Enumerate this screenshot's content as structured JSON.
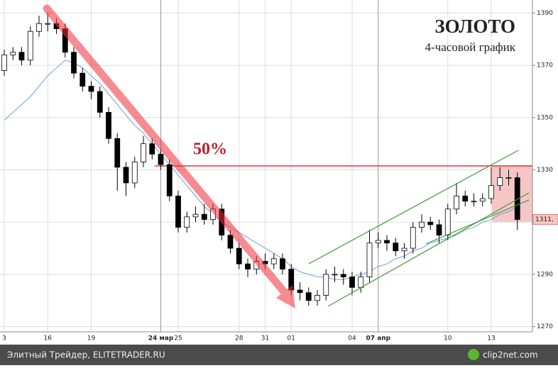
{
  "chart_data": {
    "type": "candlestick",
    "title": "ЗОЛОТО",
    "subtitle": "4-часовой график",
    "categories": [
      "3",
      null,
      null,
      null,
      null,
      "16",
      null,
      null,
      null,
      null,
      "19",
      null,
      null,
      null,
      null,
      null,
      null,
      null,
      "24 мар",
      null,
      "25",
      null,
      null,
      null,
      null,
      null,
      null,
      "28",
      null,
      null,
      "31",
      null,
      null,
      "01",
      null,
      null,
      null,
      null,
      null,
      null,
      "04",
      null,
      null,
      "07 апр",
      null,
      null,
      null,
      null,
      null,
      null,
      null,
      "10",
      null,
      null,
      null,
      null,
      "13",
      null,
      null,
      null
    ],
    "major_ticks": [
      18,
      43
    ],
    "open": [
      1368,
      1374,
      1375,
      1372,
      1383,
      1386,
      1386,
      1384,
      1375,
      1367,
      1362,
      1360,
      1352,
      1342,
      1331,
      1325,
      1333,
      1340,
      1336,
      1332,
      1320,
      1308,
      1312,
      1313,
      1311,
      1315,
      1305,
      1300,
      1294,
      1292,
      1295,
      1294,
      1296,
      1292,
      1284,
      1283,
      1280,
      1282,
      1290,
      1290,
      1289,
      1285,
      1289,
      1302,
      1303,
      1302,
      1299,
      1300,
      1308,
      1310,
      1309,
      1305,
      1315,
      1320,
      1318,
      1318,
      1319,
      1324,
      1327,
      1327
    ],
    "high": [
      1376,
      1377,
      1377,
      1385,
      1389,
      1390,
      1388,
      1386,
      1377,
      1369,
      1364,
      1362,
      1354,
      1344,
      1333,
      1335,
      1343,
      1342,
      1338,
      1334,
      1322,
      1314,
      1316,
      1317,
      1317,
      1317,
      1307,
      1302,
      1296,
      1297,
      1298,
      1298,
      1298,
      1294,
      1287,
      1285,
      1284,
      1292,
      1293,
      1292,
      1291,
      1291,
      1307,
      1306,
      1305,
      1304,
      1302,
      1310,
      1313,
      1312,
      1311,
      1317,
      1325,
      1322,
      1321,
      1321,
      1331,
      1331,
      1330,
      1329
    ],
    "low": [
      1366,
      1372,
      1370,
      1370,
      1381,
      1383,
      1382,
      1373,
      1365,
      1360,
      1357,
      1350,
      1340,
      1322,
      1320,
      1323,
      1331,
      1334,
      1330,
      1318,
      1306,
      1306,
      1310,
      1309,
      1309,
      1303,
      1298,
      1292,
      1289,
      1290,
      1292,
      1292,
      1290,
      1282,
      1280,
      1278,
      1278,
      1280,
      1287,
      1286,
      1282,
      1283,
      1287,
      1300,
      1299,
      1297,
      1296,
      1298,
      1306,
      1307,
      1302,
      1303,
      1313,
      1316,
      1316,
      1316,
      1317,
      1322,
      1324,
      1307
    ],
    "close": [
      1374,
      1375,
      1372,
      1383,
      1386,
      1386,
      1384,
      1375,
      1367,
      1362,
      1360,
      1352,
      1342,
      1331,
      1325,
      1333,
      1340,
      1336,
      1332,
      1320,
      1308,
      1312,
      1313,
      1311,
      1315,
      1305,
      1300,
      1294,
      1292,
      1295,
      1294,
      1296,
      1292,
      1284,
      1283,
      1280,
      1282,
      1290,
      1290,
      1289,
      1285,
      1289,
      1302,
      1303,
      1302,
      1299,
      1300,
      1308,
      1310,
      1309,
      1305,
      1315,
      1320,
      1318,
      1318,
      1319,
      1324,
      1327,
      1327,
      1311
    ],
    "moving_average": [
      1349,
      1352,
      1355,
      1358,
      1362,
      1366,
      1369,
      1372,
      1371,
      1369,
      1366,
      1363,
      1359,
      1355,
      1351,
      1347,
      1344,
      1340,
      1336,
      1332,
      1328,
      1324,
      1320,
      1316,
      1313,
      1310,
      1308,
      1306,
      1304,
      1302,
      1300,
      1298,
      1296,
      1293,
      1291,
      1290,
      1289,
      1289,
      1288,
      1288,
      1289,
      1290,
      1291,
      1293,
      1294,
      1296,
      1297,
      1299,
      1300,
      1302,
      1303,
      1304,
      1305,
      1307,
      1308,
      1310,
      1311,
      1313,
      1314,
      1316
    ],
    "ma_color": "#6f9ed8",
    "level": {
      "value": 1331.5,
      "label": "50%"
    },
    "level_color": "#e8333b",
    "last_price": {
      "value": 1311,
      "label": "1311,"
    },
    "ylim": [
      1268,
      1395
    ],
    "yticks": [
      1270,
      1290,
      1310,
      1330,
      1350,
      1370,
      1390
    ],
    "grid": true
  },
  "footer": {
    "source": "Элитный Трейдер, ELITETRADER.RU",
    "logo": "clip2net.com"
  }
}
